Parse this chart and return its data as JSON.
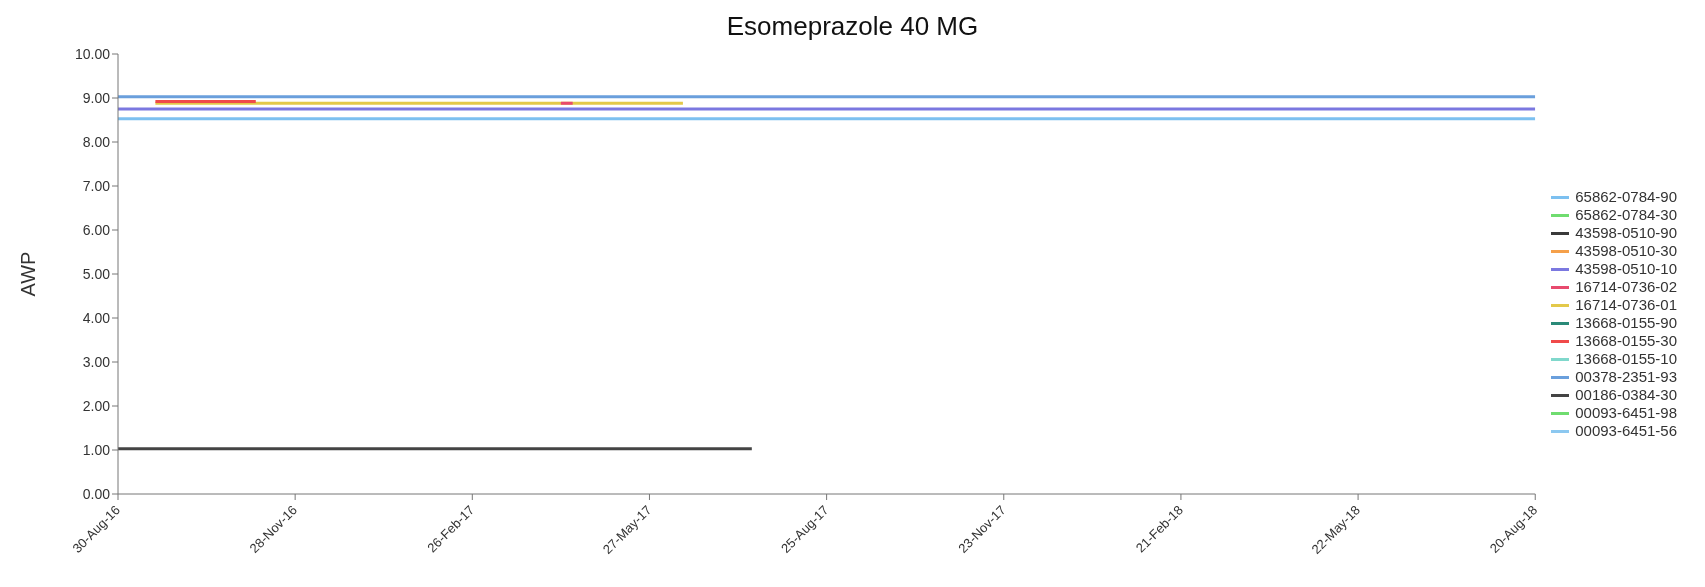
{
  "chart_data": {
    "type": "line",
    "title": "Esomeprazole 40 MG",
    "ylabel": "AWP",
    "xlim": [
      "2016-08-30",
      "2018-08-20"
    ],
    "xticks": [
      {
        "value": "2016-08-30",
        "label": "30-Aug-16"
      },
      {
        "value": "2016-11-28",
        "label": "28-Nov-16"
      },
      {
        "value": "2017-02-26",
        "label": "26-Feb-17"
      },
      {
        "value": "2017-05-27",
        "label": "27-May-17"
      },
      {
        "value": "2017-08-25",
        "label": "25-Aug-17"
      },
      {
        "value": "2017-11-23",
        "label": "23-Nov-17"
      },
      {
        "value": "2018-02-21",
        "label": "21-Feb-18"
      },
      {
        "value": "2018-05-22",
        "label": "22-May-18"
      },
      {
        "value": "2018-08-20",
        "label": "20-Aug-18"
      }
    ],
    "ylim": [
      0,
      10
    ],
    "yticks": [
      {
        "value": 0,
        "label": "0.00"
      },
      {
        "value": 1,
        "label": "1.00"
      },
      {
        "value": 2,
        "label": "2.00"
      },
      {
        "value": 3,
        "label": "3.00"
      },
      {
        "value": 4,
        "label": "4.00"
      },
      {
        "value": 5,
        "label": "5.00"
      },
      {
        "value": 6,
        "label": "6.00"
      },
      {
        "value": 7,
        "label": "7.00"
      },
      {
        "value": 8,
        "label": "8.00"
      },
      {
        "value": 9,
        "label": "9.00"
      },
      {
        "value": 10,
        "label": "10.00"
      }
    ],
    "grid": false,
    "legend": "right",
    "marker": "none",
    "line_style": "solid",
    "series": [
      {
        "name": "65862-0784-90",
        "color": "#7cc0f0",
        "x": [
          "2016-08-30",
          "2018-08-20"
        ],
        "values": [
          8.53,
          8.53
        ]
      },
      {
        "name": "65862-0784-30",
        "color": "#6fdc6f"
      },
      {
        "name": "43598-0510-90",
        "color": "#3a3a3a"
      },
      {
        "name": "43598-0510-30",
        "color": "#f5a04a"
      },
      {
        "name": "43598-0510-10",
        "color": "#7b78e0",
        "x": [
          "2016-08-30",
          "2018-08-20"
        ],
        "values": [
          8.75,
          8.75
        ]
      },
      {
        "name": "16714-0736-02",
        "color": "#e84a6e",
        "x": [
          "2017-04-12",
          "2017-04-18"
        ],
        "values": [
          8.88,
          8.88
        ]
      },
      {
        "name": "16714-0736-01",
        "color": "#e3c94a",
        "x": [
          "2016-09-18",
          "2017-06-13"
        ],
        "values": [
          8.88,
          8.88
        ]
      },
      {
        "name": "13668-0155-90",
        "color": "#2a8a78"
      },
      {
        "name": "13668-0155-30",
        "color": "#f04a4a",
        "x": [
          "2016-09-18",
          "2016-11-08"
        ],
        "values": [
          8.92,
          8.92
        ]
      },
      {
        "name": "13668-0155-10",
        "color": "#80d8cc"
      },
      {
        "name": "00378-2351-93",
        "color": "#6a9fdc",
        "x": [
          "2016-08-30",
          "2018-08-20"
        ],
        "values": [
          9.03,
          9.03
        ]
      },
      {
        "name": "00186-0384-30",
        "color": "#444444",
        "x": [
          "2016-08-30",
          "2017-07-18"
        ],
        "values": [
          1.03,
          1.03
        ]
      },
      {
        "name": "00093-6451-98",
        "color": "#6fdc6f"
      },
      {
        "name": "00093-6451-56",
        "color": "#8cc8f0"
      }
    ]
  }
}
